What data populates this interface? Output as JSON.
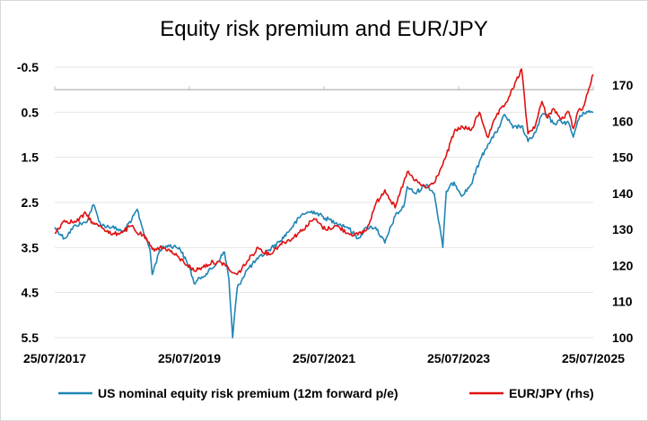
{
  "chart_data": {
    "type": "line",
    "title": "Equity risk premium and EUR/JPY",
    "x_ticks": [
      "25/07/2017",
      "25/07/2019",
      "25/07/2021",
      "25/07/2023",
      "25/07/2025"
    ],
    "y_left": {
      "ticks": [
        "-0.5",
        "0.5",
        "1.5",
        "2.5",
        "3.5",
        "4.5",
        "5.5"
      ],
      "range": [
        -0.5,
        5.5
      ],
      "inverted": true
    },
    "y_right": {
      "ticks": [
        "170",
        "160",
        "150",
        "140",
        "130",
        "120",
        "110",
        "100"
      ],
      "range": [
        100,
        175
      ]
    },
    "grid": "horizontal",
    "legend_position": "bottom",
    "series": [
      {
        "name": "US nominal equity risk premium (12m forward p/e)",
        "axis": "left",
        "color": "#1f85b4",
        "points": [
          [
            "2017-07-25",
            3.05
          ],
          [
            "2017-09-15",
            3.3
          ],
          [
            "2017-11-15",
            3.0
          ],
          [
            "2018-01-10",
            2.95
          ],
          [
            "2018-02-20",
            2.55
          ],
          [
            "2018-04-01",
            3.0
          ],
          [
            "2018-06-01",
            3.05
          ],
          [
            "2018-08-01",
            3.15
          ],
          [
            "2018-09-15",
            2.9
          ],
          [
            "2018-10-15",
            2.65
          ],
          [
            "2018-11-15",
            3.1
          ],
          [
            "2018-12-24",
            3.55
          ],
          [
            "2019-01-05",
            4.1
          ],
          [
            "2019-02-15",
            3.55
          ],
          [
            "2019-04-01",
            3.45
          ],
          [
            "2019-06-01",
            3.5
          ],
          [
            "2019-08-01",
            4.0
          ],
          [
            "2019-08-20",
            4.3
          ],
          [
            "2019-10-01",
            4.15
          ],
          [
            "2019-12-01",
            3.95
          ],
          [
            "2020-02-01",
            3.6
          ],
          [
            "2020-02-25",
            4.2
          ],
          [
            "2020-03-16",
            5.5
          ],
          [
            "2020-04-10",
            4.4
          ],
          [
            "2020-06-01",
            4.0
          ],
          [
            "2020-08-01",
            3.75
          ],
          [
            "2020-10-01",
            3.55
          ],
          [
            "2020-12-01",
            3.35
          ],
          [
            "2021-02-01",
            3.05
          ],
          [
            "2021-04-01",
            2.75
          ],
          [
            "2021-06-01",
            2.7
          ],
          [
            "2021-08-01",
            2.85
          ],
          [
            "2021-10-01",
            2.95
          ],
          [
            "2021-12-01",
            3.05
          ],
          [
            "2022-01-25",
            3.3
          ],
          [
            "2022-03-15",
            3.05
          ],
          [
            "2022-05-01",
            3.05
          ],
          [
            "2022-06-20",
            3.4
          ],
          [
            "2022-08-15",
            2.8
          ],
          [
            "2022-09-30",
            2.6
          ],
          [
            "2022-10-20",
            2.15
          ],
          [
            "2022-12-01",
            2.3
          ],
          [
            "2023-02-01",
            2.1
          ],
          [
            "2023-03-15",
            2.3
          ],
          [
            "2023-04-20",
            3.2
          ],
          [
            "2023-05-01",
            3.5
          ],
          [
            "2023-05-20",
            2.25
          ],
          [
            "2023-07-01",
            2.05
          ],
          [
            "2023-08-15",
            2.35
          ],
          [
            "2023-10-01",
            2.1
          ],
          [
            "2023-11-15",
            1.6
          ],
          [
            "2024-01-01",
            1.2
          ],
          [
            "2024-02-15",
            0.95
          ],
          [
            "2024-04-01",
            0.55
          ],
          [
            "2024-05-15",
            0.85
          ],
          [
            "2024-07-01",
            0.8
          ],
          [
            "2024-08-05",
            1.15
          ],
          [
            "2024-09-15",
            0.95
          ],
          [
            "2024-10-20",
            0.55
          ],
          [
            "2024-11-15",
            0.55
          ],
          [
            "2024-12-20",
            0.75
          ],
          [
            "2025-02-01",
            0.7
          ],
          [
            "2025-03-15",
            0.75
          ],
          [
            "2025-04-08",
            1.05
          ],
          [
            "2025-05-01",
            0.7
          ],
          [
            "2025-06-01",
            0.5
          ],
          [
            "2025-07-25",
            0.5
          ]
        ]
      },
      {
        "name": "EUR/JPY (rhs)",
        "axis": "right",
        "color": "#e01010",
        "points": [
          [
            "2017-07-25",
            129.0
          ],
          [
            "2017-09-15",
            132.5
          ],
          [
            "2017-11-15",
            132.0
          ],
          [
            "2018-01-10",
            134.5
          ],
          [
            "2018-02-20",
            131.5
          ],
          [
            "2018-04-01",
            131.0
          ],
          [
            "2018-06-01",
            128.5
          ],
          [
            "2018-08-01",
            129.5
          ],
          [
            "2018-09-15",
            131.0
          ],
          [
            "2018-10-15",
            129.0
          ],
          [
            "2018-11-15",
            128.5
          ],
          [
            "2018-12-24",
            125.5
          ],
          [
            "2019-01-05",
            124.5
          ],
          [
            "2019-02-15",
            125.0
          ],
          [
            "2019-04-01",
            124.5
          ],
          [
            "2019-06-01",
            122.0
          ],
          [
            "2019-08-01",
            119.5
          ],
          [
            "2019-08-20",
            118.5
          ],
          [
            "2019-10-01",
            119.5
          ],
          [
            "2019-12-01",
            121.0
          ],
          [
            "2020-02-01",
            120.5
          ],
          [
            "2020-02-25",
            119.0
          ],
          [
            "2020-03-16",
            118.0
          ],
          [
            "2020-04-10",
            117.5
          ],
          [
            "2020-06-01",
            121.0
          ],
          [
            "2020-08-01",
            125.0
          ],
          [
            "2020-10-01",
            123.0
          ],
          [
            "2020-12-01",
            126.0
          ],
          [
            "2021-02-01",
            127.5
          ],
          [
            "2021-04-01",
            130.0
          ],
          [
            "2021-06-01",
            133.0
          ],
          [
            "2021-08-01",
            130.0
          ],
          [
            "2021-10-01",
            131.0
          ],
          [
            "2021-12-01",
            129.0
          ],
          [
            "2022-01-25",
            128.5
          ],
          [
            "2022-03-15",
            130.0
          ],
          [
            "2022-05-01",
            137.0
          ],
          [
            "2022-06-20",
            141.0
          ],
          [
            "2022-08-15",
            136.0
          ],
          [
            "2022-09-30",
            143.0
          ],
          [
            "2022-10-20",
            146.0
          ],
          [
            "2022-12-01",
            143.5
          ],
          [
            "2023-02-01",
            141.5
          ],
          [
            "2023-03-15",
            143.0
          ],
          [
            "2023-04-20",
            147.0
          ],
          [
            "2023-05-01",
            148.0
          ],
          [
            "2023-05-20",
            150.5
          ],
          [
            "2023-07-01",
            157.0
          ],
          [
            "2023-08-15",
            158.5
          ],
          [
            "2023-10-01",
            157.5
          ],
          [
            "2023-11-15",
            162.5
          ],
          [
            "2024-01-01",
            155.5
          ],
          [
            "2024-02-15",
            161.5
          ],
          [
            "2024-04-01",
            164.5
          ],
          [
            "2024-05-15",
            169.0
          ],
          [
            "2024-07-01",
            174.5
          ],
          [
            "2024-08-05",
            156.5
          ],
          [
            "2024-09-15",
            159.0
          ],
          [
            "2024-10-20",
            165.5
          ],
          [
            "2024-11-15",
            161.0
          ],
          [
            "2024-12-20",
            163.5
          ],
          [
            "2025-02-01",
            160.5
          ],
          [
            "2025-03-15",
            162.5
          ],
          [
            "2025-04-08",
            158.0
          ],
          [
            "2025-05-01",
            162.5
          ],
          [
            "2025-06-01",
            164.0
          ],
          [
            "2025-07-25",
            173.0
          ]
        ]
      }
    ]
  }
}
